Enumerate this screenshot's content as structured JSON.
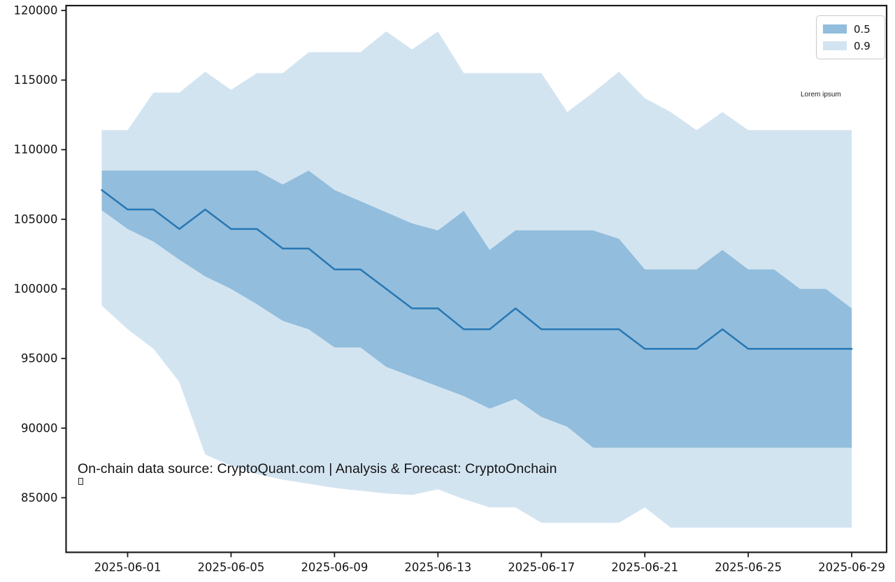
{
  "figure": {
    "background": "#ffffff"
  },
  "chart_data": {
    "type": "area",
    "title": "",
    "xlabel": "",
    "ylabel": "",
    "grid": false,
    "x_dates": [
      "2025-05-31",
      "2025-06-01",
      "2025-06-02",
      "2025-06-03",
      "2025-06-04",
      "2025-06-05",
      "2025-06-06",
      "2025-06-07",
      "2025-06-08",
      "2025-06-09",
      "2025-06-10",
      "2025-06-11",
      "2025-06-12",
      "2025-06-13",
      "2025-06-14",
      "2025-06-15",
      "2025-06-16",
      "2025-06-17",
      "2025-06-18",
      "2025-06-19",
      "2025-06-20",
      "2025-06-21",
      "2025-06-22",
      "2025-06-23",
      "2025-06-24",
      "2025-06-25",
      "2025-06-26",
      "2025-06-27",
      "2025-06-28",
      "2025-06-29"
    ],
    "median": {
      "name": "forecast-median",
      "color": "#2777b4",
      "values": [
        107100,
        105700,
        105700,
        104300,
        105700,
        104300,
        104300,
        102900,
        102900,
        101400,
        101400,
        100000,
        98600,
        98600,
        97100,
        97100,
        98600,
        97100,
        97100,
        97100,
        97100,
        95700,
        95700,
        95700,
        97100,
        95700,
        95700,
        95700,
        95700,
        95700
      ]
    },
    "bands": [
      {
        "name": "0.9",
        "color": "#d3e4f1",
        "hi": [
          111400,
          111400,
          114100,
          114100,
          115600,
          114300,
          115500,
          115500,
          117000,
          117000,
          117000,
          118500,
          117200,
          118500,
          115500,
          115500,
          115500,
          115500,
          112700,
          114100,
          115600,
          113700,
          112700,
          111400,
          112700,
          111400,
          111400,
          111400,
          111400,
          111400
        ],
        "lo": [
          98800,
          97100,
          95700,
          93300,
          88100,
          87300,
          86700,
          86300,
          86000,
          85700,
          85500,
          85300,
          85200,
          85600,
          84900,
          84300,
          84300,
          83200,
          83200,
          83200,
          83200,
          84300,
          82850,
          82850,
          82850,
          82850,
          82850,
          82850,
          82850,
          82850
        ]
      },
      {
        "name": "0.5",
        "color": "#92bddc",
        "hi": [
          108500,
          108500,
          108500,
          108500,
          108500,
          108500,
          108500,
          107500,
          108500,
          107100,
          106300,
          105500,
          104700,
          104200,
          105600,
          102800,
          104200,
          104200,
          104200,
          104200,
          103600,
          101400,
          101400,
          101400,
          102800,
          101400,
          101400,
          100000,
          100000,
          98600
        ],
        "lo": [
          105650,
          104300,
          103400,
          102100,
          100900,
          100000,
          98900,
          97700,
          97100,
          95800,
          95800,
          94400,
          93700,
          93000,
          92300,
          91400,
          92100,
          90800,
          90100,
          88600,
          88600,
          88600,
          88600,
          88600,
          88600,
          88600,
          88600,
          88600,
          88600,
          88600
        ]
      }
    ],
    "legend": {
      "position": "upper right",
      "entries": [
        {
          "label": "0.5",
          "color": "#92bddc"
        },
        {
          "label": "0.9",
          "color": "#d3e4f1"
        }
      ]
    },
    "x_ticks": {
      "labels": [
        "2025-06-01",
        "2025-06-05",
        "2025-06-09",
        "2025-06-13",
        "2025-06-17",
        "2025-06-21",
        "2025-06-25",
        "2025-06-29"
      ],
      "day_index": [
        1,
        5,
        9,
        13,
        17,
        21,
        25,
        29
      ]
    },
    "y_ticks": [
      120000,
      115000,
      110000,
      105000,
      100000,
      95000,
      90000,
      85000
    ],
    "ylim": [
      81080,
      120350
    ],
    "xlim_day_index": [
      -1.38,
      30.35
    ],
    "annotation": "On-chain data source: CryptoQuant.com | Analysis & Forecast: CryptoOnchain",
    "watermark": "Lorem ipsum"
  }
}
